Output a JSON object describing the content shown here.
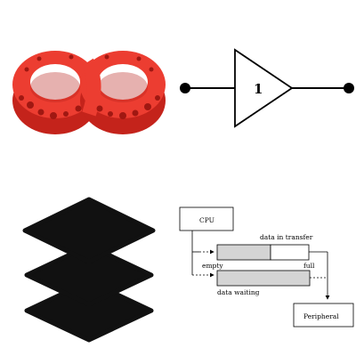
{
  "buffer_gate": {
    "label": "1",
    "fill": "#ffffff",
    "stroke": "#000000"
  },
  "ring_figure": {
    "color": "#e8352a",
    "icon": "interlocked-red-rings"
  },
  "layers_icon": {
    "color": "#111111",
    "icon": "stacked-layers-icon"
  },
  "io_diagram": {
    "cpu_label": "CPU",
    "peripheral_label": "Peripheral",
    "data_in_transfer": "data in transfer",
    "empty": "empty",
    "full": "full",
    "data_waiting": "data waiting",
    "buffer_fill": "#d4d4d4"
  }
}
